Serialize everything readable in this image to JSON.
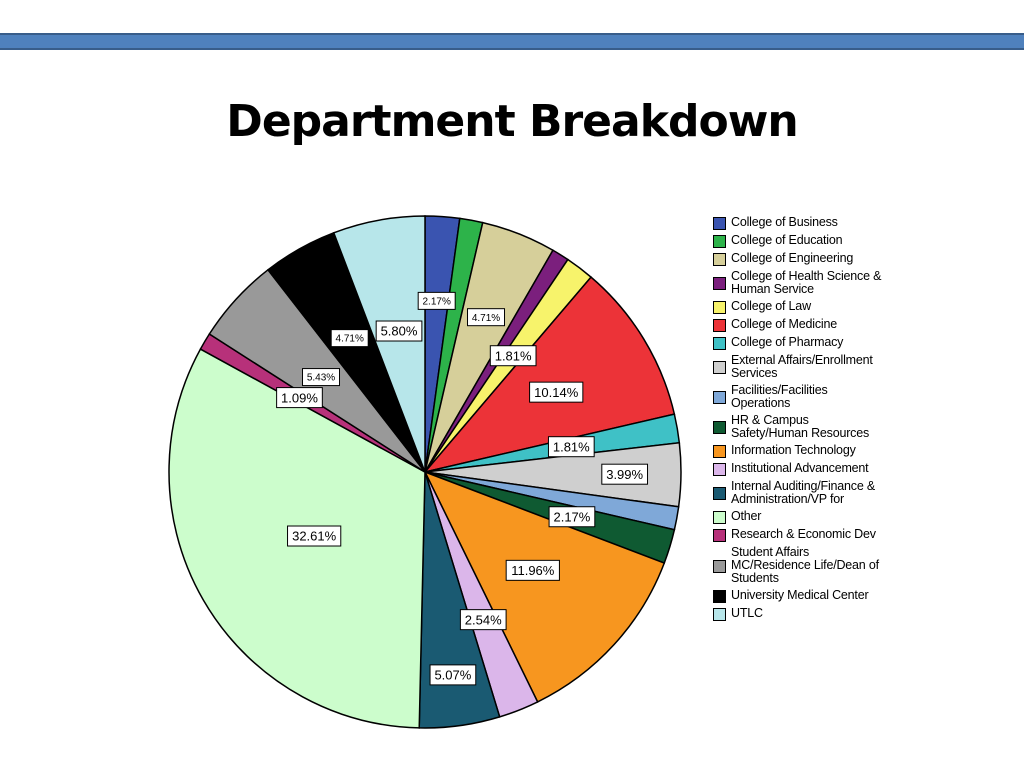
{
  "slide": {
    "title": "Department Breakdown",
    "accent_bar_color": "#4f81bd"
  },
  "chart_data": {
    "type": "pie",
    "title": "Department Breakdown",
    "start_angle": "12 o'clock, clockwise",
    "legend_position": "right",
    "categories": [
      "College of Business",
      "College of Education",
      "College of Engineering",
      "College of Health Science & Human Service",
      "College of Law",
      "College of Medicine",
      "College of Pharmacy",
      "External Affairs/Enrollment Services",
      "Facilities/Facilities Operations",
      "HR & Campus Safety/Human Resources",
      "Information Technology",
      "Institutional Advancement",
      "Internal Auditing/Finance & Administration/VP for",
      "Other",
      "Research & Economic Dev",
      "Student Affairs MC/Residence Life/Dean of Students",
      "University Medical Center",
      "UTLC"
    ],
    "values": [
      2.17,
      1.45,
      4.71,
      1.09,
      1.81,
      10.14,
      1.81,
      3.99,
      1.45,
      2.17,
      11.96,
      2.54,
      5.07,
      32.61,
      1.09,
      5.43,
      4.71,
      5.8
    ],
    "labels": [
      "2.17%",
      "",
      "4.71%",
      "",
      "1.81%",
      "10.14%",
      "1.81%",
      "3.99%",
      "",
      "2.17%",
      "11.96%",
      "2.54%",
      "5.07%",
      "32.61%",
      "1.09%",
      "5.43%",
      "4.71%",
      "5.80%"
    ],
    "colors": [
      "#3a54b0",
      "#2db34a",
      "#d6cf9a",
      "#7b1f7d",
      "#f7f36b",
      "#ec3338",
      "#3fc1c6",
      "#cfcfcf",
      "#7fa8d8",
      "#0f5a32",
      "#f7961f",
      "#dbb6ea",
      "#1a5a72",
      "#ccfdcc",
      "#b7317a",
      "#999999",
      "#000000",
      "#b7e6ea"
    ],
    "units": "%"
  },
  "legend": {
    "items": [
      {
        "label": "College of Business",
        "color": "#3a54b0"
      },
      {
        "label": "College of Education",
        "color": "#2db34a"
      },
      {
        "label": "College of Engineering",
        "color": "#d6cf9a"
      },
      {
        "label": "College of Health Science &\nHuman Service",
        "color": "#7b1f7d"
      },
      {
        "label": "College of Law",
        "color": "#f7f36b"
      },
      {
        "label": "College of Medicine",
        "color": "#ec3338"
      },
      {
        "label": "College of Pharmacy",
        "color": "#3fc1c6"
      },
      {
        "label": "External Affairs/Enrollment\nServices",
        "color": "#cfcfcf"
      },
      {
        "label": "Facilities/Facilities\nOperations",
        "color": "#7fa8d8"
      },
      {
        "label": "HR & Campus\nSafety/Human Resources",
        "color": "#0f5a32"
      },
      {
        "label": "Information Technology",
        "color": "#f7961f"
      },
      {
        "label": "Institutional Advancement",
        "color": "#dbb6ea"
      },
      {
        "label": "Internal Auditing/Finance &\nAdministration/VP for",
        "color": "#1a5a72"
      },
      {
        "label": "Other",
        "color": "#ccfdcc"
      },
      {
        "label": "Research & Economic Dev",
        "color": "#b7317a"
      },
      {
        "label": "Student Affairs\nMC/Residence Life/Dean of\nStudents",
        "color": "#999999"
      },
      {
        "label": "University Medical Center",
        "color": "#000000"
      },
      {
        "label": "UTLC",
        "color": "#b7e6ea"
      }
    ]
  }
}
